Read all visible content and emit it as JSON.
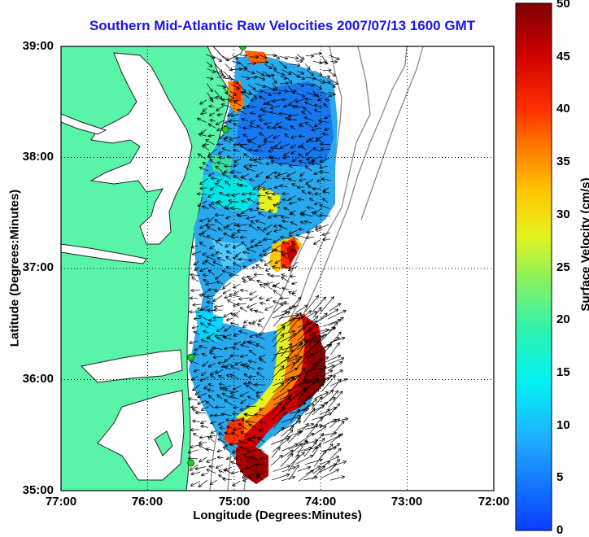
{
  "title": "Southern Mid-Atlantic Raw Velocities 2007/07/13 1600 GMT",
  "xlabel": "Longitude (Degrees:Minutes)",
  "ylabel": "Latitude (Degrees:Minutes)",
  "x_ticks": [
    "77:00",
    "76:00",
    "75:00",
    "74:00",
    "73:00",
    "72:00"
  ],
  "y_ticks": [
    "39:00",
    "38:00",
    "37:00",
    "36:00",
    "35:00"
  ],
  "colorbar": {
    "label": "Surface Velocity (cm/s)",
    "ticks": [
      "50",
      "45",
      "40",
      "35",
      "30",
      "25",
      "20",
      "15",
      "10",
      "5",
      "0"
    ],
    "range": [
      0,
      50
    ]
  },
  "colors": {
    "land": "#58f5a8",
    "title": "#1a14e6",
    "arrows": "#000000",
    "stations": "#22cc22"
  },
  "chart_data": {
    "type": "map",
    "xlim": [
      -77,
      -72
    ],
    "ylim": [
      35,
      39
    ],
    "grid": true,
    "field": "surface current velocity (cm/s)",
    "stations": [
      {
        "lon": -74.9,
        "lat": 39.0
      },
      {
        "lon": -75.1,
        "lat": 38.25
      },
      {
        "lon": -75.5,
        "lat": 36.2
      },
      {
        "lon": -75.5,
        "lat": 35.25
      }
    ]
  }
}
